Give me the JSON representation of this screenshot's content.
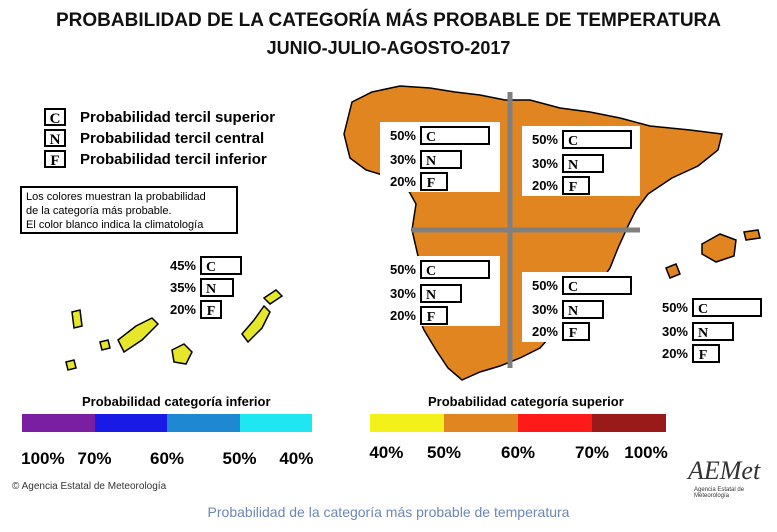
{
  "title": "PROBABILIDAD DE LA CATEGORÍA MÁS PROBABLE DE TEMPERATURA",
  "subtitle": "JUNIO-JULIO-AGOSTO-2017",
  "legend": [
    {
      "letter": "C",
      "label": "Probabilidad  tercil superior"
    },
    {
      "letter": "N",
      "label": "Probabilidad  tercil central"
    },
    {
      "letter": "F",
      "label": "Probabilidad  tercil inferior"
    }
  ],
  "note": {
    "line1": "Los colores muestran la probabilidad",
    "line2": "de la categoría más probable.",
    "line3": "El color blanco indica la climatología"
  },
  "panels": [
    {
      "region": "noroeste",
      "c": "50%",
      "n": "30%",
      "f": "20%"
    },
    {
      "region": "noreste",
      "c": "50%",
      "n": "30%",
      "f": "20%"
    },
    {
      "region": "suroeste",
      "c": "50%",
      "n": "30%",
      "f": "20%"
    },
    {
      "region": "sureste",
      "c": "50%",
      "n": "30%",
      "f": "20%"
    },
    {
      "region": "baleares",
      "c": "50%",
      "n": "30%",
      "f": "20%"
    },
    {
      "region": "canarias",
      "c": "45%",
      "n": "35%",
      "f": "20%"
    }
  ],
  "colors": {
    "map_orange": "#e0851f",
    "canarias_yellow": "#e6e62a",
    "grid_gray": "#808080"
  },
  "scale_inferior": {
    "title": "Probabilidad categoría inferior",
    "colors": [
      "#7b1fa2",
      "#1a1ae6",
      "#1e88d2",
      "#1fe6f0"
    ],
    "labels": [
      "100%",
      "70%",
      "60%",
      "50%",
      "40%"
    ]
  },
  "scale_superior": {
    "title": "Probabilidad categoría superior",
    "colors": [
      "#f2f21a",
      "#e0851f",
      "#ff1a1a",
      "#9a1a1a"
    ],
    "labels": [
      "40%",
      "50%",
      "60%",
      "70%",
      "100%"
    ]
  },
  "copyright": "© Agencia Estatal de Meteorología",
  "logo": {
    "name": "AEMet",
    "sub": "Agencia Estatal de Meteorología"
  },
  "caption": "Probabilidad de la categoría más probable de temperatura"
}
